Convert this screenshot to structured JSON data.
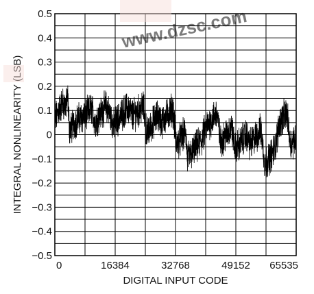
{
  "watermark": {
    "text": "www.dzsc.com",
    "color": "#f0c8c0"
  },
  "chart_data": {
    "type": "line",
    "xlabel": "DIGITAL INPUT CODE",
    "ylabel": "INTEGRAL NONLINEARITY (LSB)",
    "xlim": [
      0,
      65535
    ],
    "ylim": [
      -0.5,
      0.5
    ],
    "x_ticks": [
      0,
      16384,
      32768,
      49152,
      65535
    ],
    "x_tick_labels": [
      "0",
      "16384",
      "32768",
      "49152",
      "65535"
    ],
    "y_ticks": [
      -0.5,
      -0.4,
      -0.3,
      -0.2,
      -0.1,
      0,
      0.1,
      0.2,
      0.3,
      0.4,
      0.5
    ],
    "y_tick_labels": [
      "−0.5",
      "−0.4",
      "−0.3",
      "−0.2",
      "−0.1",
      "0",
      "0.1",
      "0.2",
      "0.3",
      "0.4",
      "0.5"
    ],
    "grid": true,
    "series": [
      {
        "color": "#000000",
        "points": [
          [
            0,
            0.06
          ],
          [
            1000,
            0.1
          ],
          [
            2000,
            0.13
          ],
          [
            3000,
            0.12
          ],
          [
            3500,
            0.15
          ],
          [
            4000,
            0.02
          ],
          [
            5000,
            0.04
          ],
          [
            6000,
            0.06
          ],
          [
            7000,
            0.07
          ],
          [
            8000,
            0.08
          ],
          [
            9000,
            0.09
          ],
          [
            10000,
            0.11
          ],
          [
            11000,
            0.05
          ],
          [
            12000,
            0.08
          ],
          [
            13000,
            0.1
          ],
          [
            14000,
            0.12
          ],
          [
            16000,
            0.04
          ],
          [
            17000,
            0.06
          ],
          [
            18000,
            0.08
          ],
          [
            19000,
            0.1
          ],
          [
            20000,
            0.11
          ],
          [
            21000,
            0.08
          ],
          [
            22000,
            0.09
          ],
          [
            23000,
            0.1
          ],
          [
            24000,
            0.12
          ],
          [
            25000,
            0.0
          ],
          [
            26000,
            0.03
          ],
          [
            27000,
            0.06
          ],
          [
            28000,
            0.08
          ],
          [
            29000,
            0.05
          ],
          [
            30000,
            0.07
          ],
          [
            31000,
            0.09
          ],
          [
            32000,
            0.11
          ],
          [
            33000,
            -0.04
          ],
          [
            34000,
            -0.02
          ],
          [
            35000,
            0.0
          ],
          [
            35500,
            0.02
          ],
          [
            36000,
            -0.1
          ],
          [
            37000,
            -0.08
          ],
          [
            38000,
            -0.06
          ],
          [
            39000,
            -0.04
          ],
          [
            40000,
            -0.02
          ],
          [
            41000,
            0.03
          ],
          [
            42000,
            0.05
          ],
          [
            43000,
            0.07
          ],
          [
            44000,
            0.09
          ],
          [
            45000,
            -0.03
          ],
          [
            46000,
            -0.01
          ],
          [
            47000,
            0.01
          ],
          [
            48000,
            0.03
          ],
          [
            49000,
            -0.06
          ],
          [
            50000,
            -0.04
          ],
          [
            51000,
            -0.02
          ],
          [
            52000,
            0.0
          ],
          [
            53000,
            -0.04
          ],
          [
            54000,
            -0.02
          ],
          [
            55000,
            0.0
          ],
          [
            56000,
            0.02
          ],
          [
            57000,
            -0.12
          ],
          [
            58000,
            -0.1
          ],
          [
            59000,
            -0.08
          ],
          [
            60000,
            -0.04
          ],
          [
            61000,
            0.05
          ],
          [
            62000,
            0.07
          ],
          [
            63000,
            0.09
          ],
          [
            64000,
            -0.04
          ],
          [
            65535,
            -0.01
          ]
        ]
      }
    ]
  }
}
